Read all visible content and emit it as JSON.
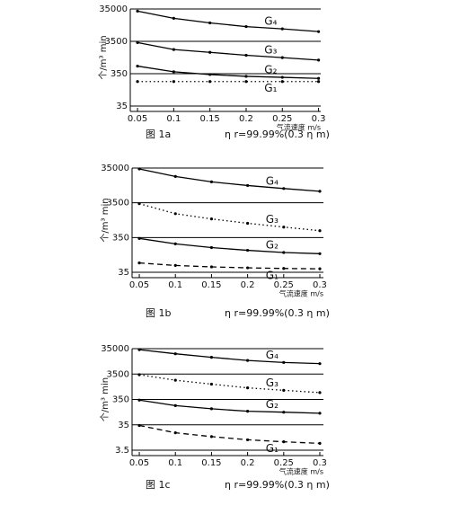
{
  "chart_data": [
    {
      "type": "line",
      "caption": "图 1a",
      "note": "η r=99.99%(0.3 η m)",
      "y_label": "个/m³ min",
      "x_label": "气流速度 m/s",
      "x": [
        0.05,
        0.1,
        0.15,
        0.2,
        0.25,
        0.3
      ],
      "xlim": [
        0.04,
        0.303
      ],
      "xticks": [
        0.05,
        0.1,
        0.15,
        0.2,
        0.25,
        0.3
      ],
      "ylim": [
        35,
        35000
      ],
      "yticks": [
        35,
        350,
        3500,
        35000
      ],
      "log_y": true,
      "grid": true,
      "series": [
        {
          "name": "G₄",
          "color": "#000000",
          "style": "solid",
          "values": [
            30000,
            18000,
            13000,
            10000,
            8500,
            7000
          ]
        },
        {
          "name": "G₃",
          "color": "#000000",
          "style": "solid",
          "values": [
            3200,
            1950,
            1600,
            1300,
            1100,
            920
          ]
        },
        {
          "name": "G₂",
          "color": "#000000",
          "style": "solid",
          "values": [
            600,
            400,
            330,
            290,
            270,
            250
          ]
        },
        {
          "name": "G₁",
          "color": "#000000",
          "style": "dotted",
          "values": [
            200,
            200,
            200,
            200,
            200,
            200
          ]
        }
      ]
    },
    {
      "type": "line",
      "caption": "图 1b",
      "note": "η r=99.99%(0.3 η m)",
      "y_label": "个/m³ min",
      "x_label": "气流速度 m/s",
      "x": [
        0.05,
        0.1,
        0.15,
        0.2,
        0.25,
        0.3
      ],
      "xlim": [
        0.04,
        0.305
      ],
      "xticks": [
        0.05,
        0.1,
        0.15,
        0.2,
        0.25,
        0.3
      ],
      "ylim": [
        35,
        35000
      ],
      "yticks": [
        35,
        350,
        3500,
        35000
      ],
      "log_y": true,
      "grid": true,
      "series": [
        {
          "name": "G₄",
          "color": "#000000",
          "style": "solid",
          "values": [
            33000,
            20000,
            14000,
            11000,
            9000,
            7500
          ]
        },
        {
          "name": "G₃",
          "color": "#000000",
          "style": "dotted",
          "values": [
            3300,
            1700,
            1200,
            900,
            700,
            550
          ]
        },
        {
          "name": "G₂",
          "color": "#000000",
          "style": "solid",
          "values": [
            330,
            230,
            180,
            150,
            130,
            120
          ]
        },
        {
          "name": "G₁",
          "color": "#000000",
          "style": "dashed",
          "values": [
            65,
            55,
            50,
            47,
            45,
            44
          ]
        }
      ]
    },
    {
      "type": "line",
      "caption": "图 1c",
      "note": "η r=99.99%(0.3 η m)",
      "y_label": "个/m³ min",
      "x_label": "气流速度 m/s",
      "x": [
        0.05,
        0.1,
        0.15,
        0.2,
        0.25,
        0.3
      ],
      "xlim": [
        0.04,
        0.305
      ],
      "xticks": [
        0.05,
        0.1,
        0.15,
        0.2,
        0.25,
        0.3
      ],
      "ylim": [
        3.5,
        35000
      ],
      "yticks": [
        3.5,
        35,
        350,
        3500,
        35000
      ],
      "log_y": true,
      "grid": true,
      "series": [
        {
          "name": "G₄",
          "color": "#000000",
          "style": "solid",
          "values": [
            32000,
            22000,
            16000,
            12000,
            10000,
            9000
          ]
        },
        {
          "name": "G₃",
          "color": "#000000",
          "style": "dotted",
          "values": [
            3300,
            2000,
            1400,
            1000,
            800,
            650
          ]
        },
        {
          "name": "G₂",
          "color": "#000000",
          "style": "solid",
          "values": [
            330,
            200,
            150,
            120,
            110,
            100
          ]
        },
        {
          "name": "G₁",
          "color": "#000000",
          "style": "dashed",
          "values": [
            33,
            17,
            12,
            9,
            7.5,
            6.5
          ]
        }
      ]
    }
  ]
}
